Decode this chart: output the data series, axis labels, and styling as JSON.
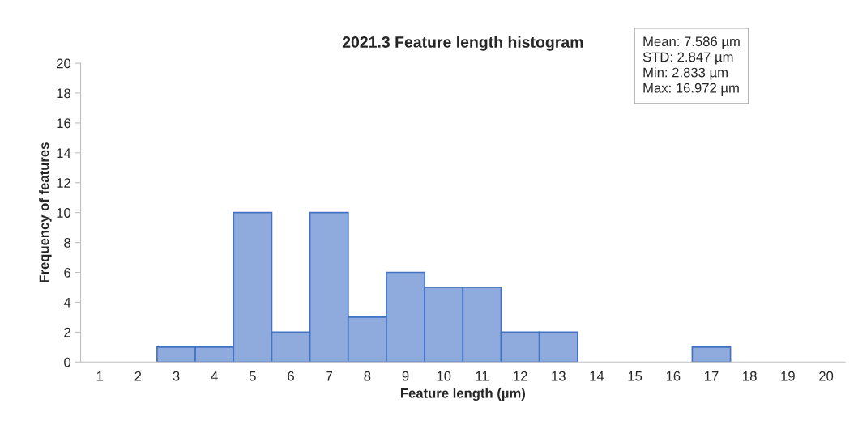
{
  "chart_data": {
    "type": "bar",
    "title": "2021.3 Feature length histogram",
    "xlabel": "Feature length (µm)",
    "ylabel": "Frequency of features",
    "categories": [
      "1",
      "2",
      "3",
      "4",
      "5",
      "6",
      "7",
      "8",
      "9",
      "10",
      "11",
      "12",
      "13",
      "14",
      "15",
      "16",
      "17",
      "18",
      "19",
      "20"
    ],
    "values": [
      0,
      0,
      1,
      1,
      10,
      2,
      10,
      3,
      6,
      5,
      5,
      2,
      2,
      0,
      0,
      0,
      1,
      0,
      0,
      0
    ],
    "color": "#8faadc",
    "ylim": [
      0,
      20
    ],
    "yticks": [
      0,
      2,
      4,
      6,
      8,
      10,
      12,
      14,
      16,
      18,
      20
    ],
    "grid": false,
    "annotations": [
      "Mean: 7.586 µm",
      "STD: 2.847 µm",
      "Min: 2.833 µm",
      "Max: 16.972 µm"
    ]
  }
}
